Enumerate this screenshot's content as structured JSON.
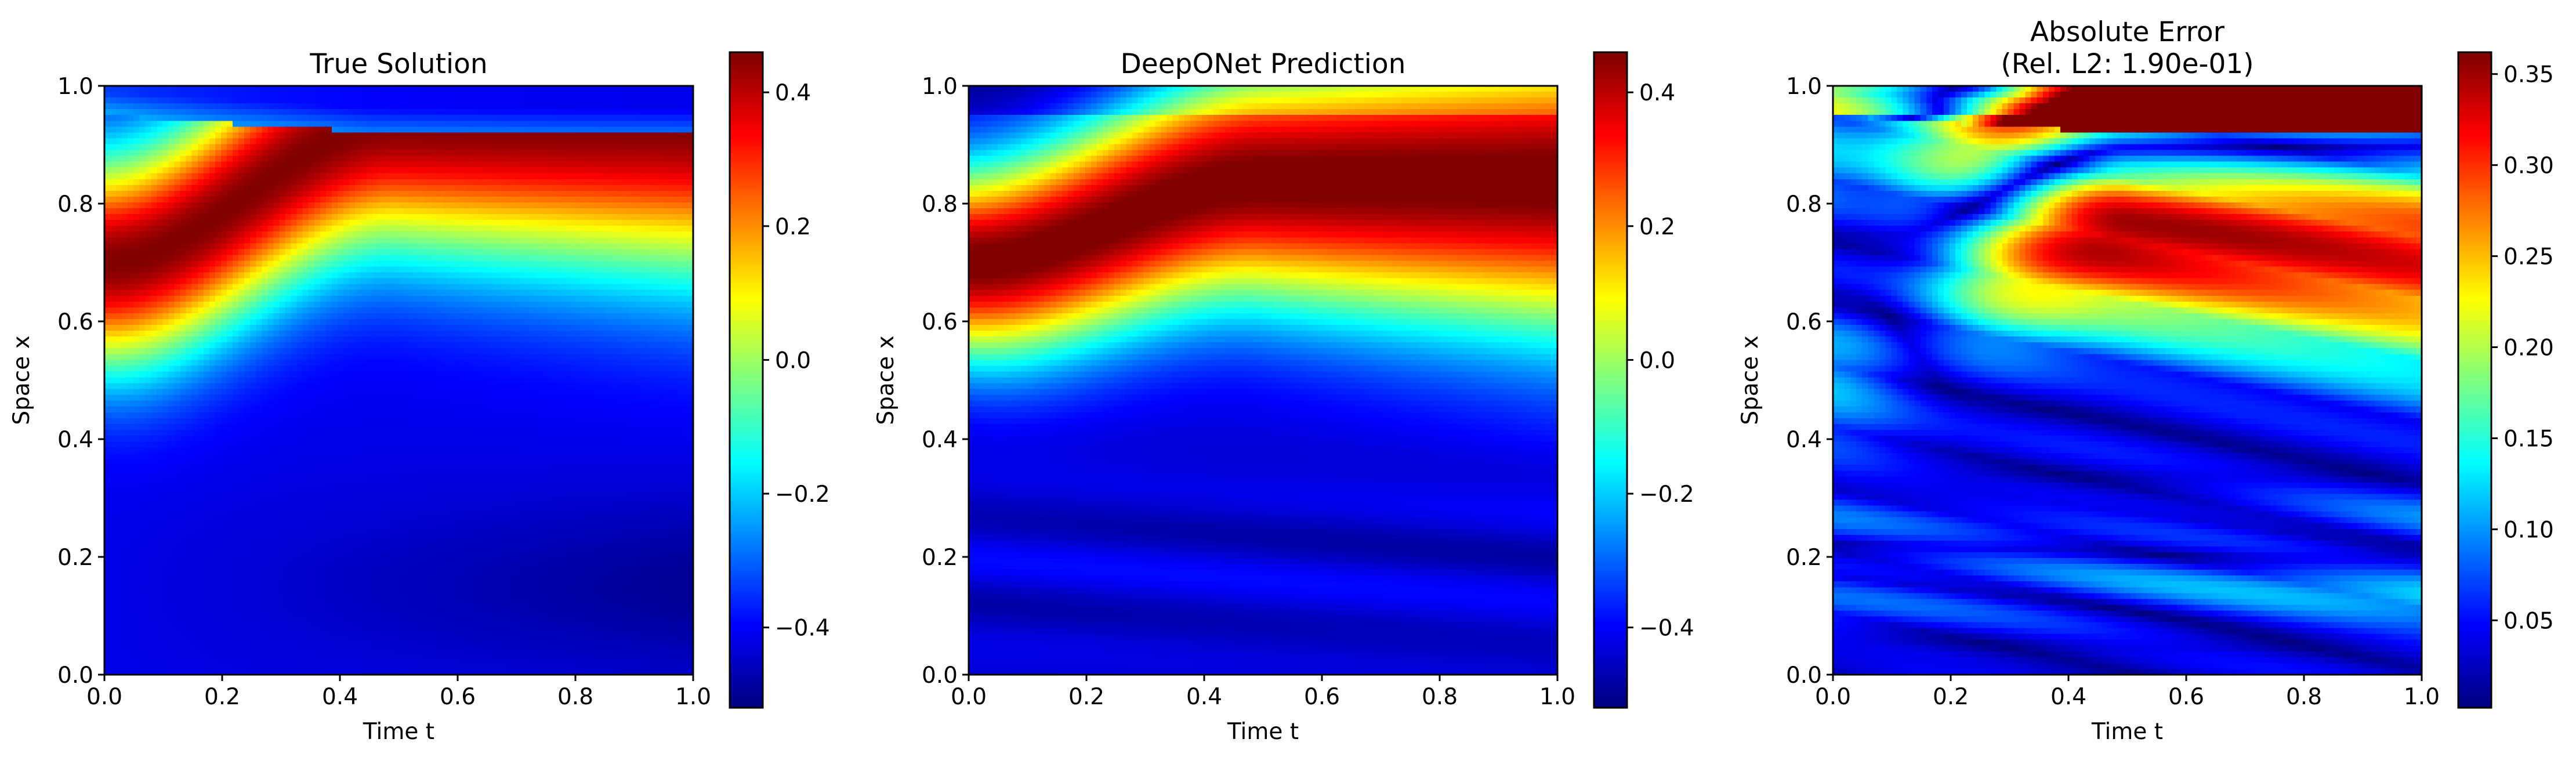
{
  "figure": {
    "background": "#ffffff",
    "colormap": "jet"
  },
  "chart_data": [
    {
      "type": "heatmap",
      "title": "True Solution",
      "title_lines": [
        "True Solution"
      ],
      "xlabel": "Time t",
      "ylabel": "Space x",
      "xlim": [
        0.0,
        1.0
      ],
      "ylim": [
        0.0,
        1.0
      ],
      "xticks": [
        "0.0",
        "0.2",
        "0.4",
        "0.6",
        "0.8",
        "1.0"
      ],
      "yticks": [
        "0.0",
        "0.2",
        "0.4",
        "0.6",
        "0.8",
        "1.0"
      ],
      "colorbar": {
        "range": [
          -0.52,
          0.46
        ],
        "ticks": [
          -0.4,
          -0.2,
          0.0,
          0.2,
          0.4
        ],
        "tick_labels": [
          "−0.4",
          "−0.2",
          "0.0",
          "0.2",
          "0.4"
        ]
      },
      "field": "true_solution"
    },
    {
      "type": "heatmap",
      "title": "DeepONet Prediction",
      "title_lines": [
        "DeepONet Prediction"
      ],
      "xlabel": "Time t",
      "ylabel": "Space x",
      "xlim": [
        0.0,
        1.0
      ],
      "ylim": [
        0.0,
        1.0
      ],
      "xticks": [
        "0.0",
        "0.2",
        "0.4",
        "0.6",
        "0.8",
        "1.0"
      ],
      "yticks": [
        "0.0",
        "0.2",
        "0.4",
        "0.6",
        "0.8",
        "1.0"
      ],
      "colorbar": {
        "range": [
          -0.52,
          0.46
        ],
        "ticks": [
          -0.4,
          -0.2,
          0.0,
          0.2,
          0.4
        ],
        "tick_labels": [
          "−0.4",
          "−0.2",
          "0.0",
          "0.2",
          "0.4"
        ]
      },
      "field": "prediction"
    },
    {
      "type": "heatmap",
      "title": "Absolute Error\n(Rel. L2: 1.90e-01)",
      "title_lines": [
        "Absolute Error",
        "(Rel. L2: 1.90e-01)"
      ],
      "xlabel": "Time t",
      "ylabel": "Space x",
      "xlim": [
        0.0,
        1.0
      ],
      "ylim": [
        0.0,
        1.0
      ],
      "xticks": [
        "0.0",
        "0.2",
        "0.4",
        "0.6",
        "0.8",
        "1.0"
      ],
      "yticks": [
        "0.0",
        "0.2",
        "0.4",
        "0.6",
        "0.8",
        "1.0"
      ],
      "colorbar": {
        "range": [
          0.002,
          0.362
        ],
        "ticks": [
          0.05,
          0.1,
          0.15,
          0.2,
          0.25,
          0.3,
          0.35
        ],
        "tick_labels": [
          "0.05",
          "0.10",
          "0.15",
          "0.20",
          "0.25",
          "0.30",
          "0.35"
        ]
      },
      "field": "abs_error"
    }
  ]
}
